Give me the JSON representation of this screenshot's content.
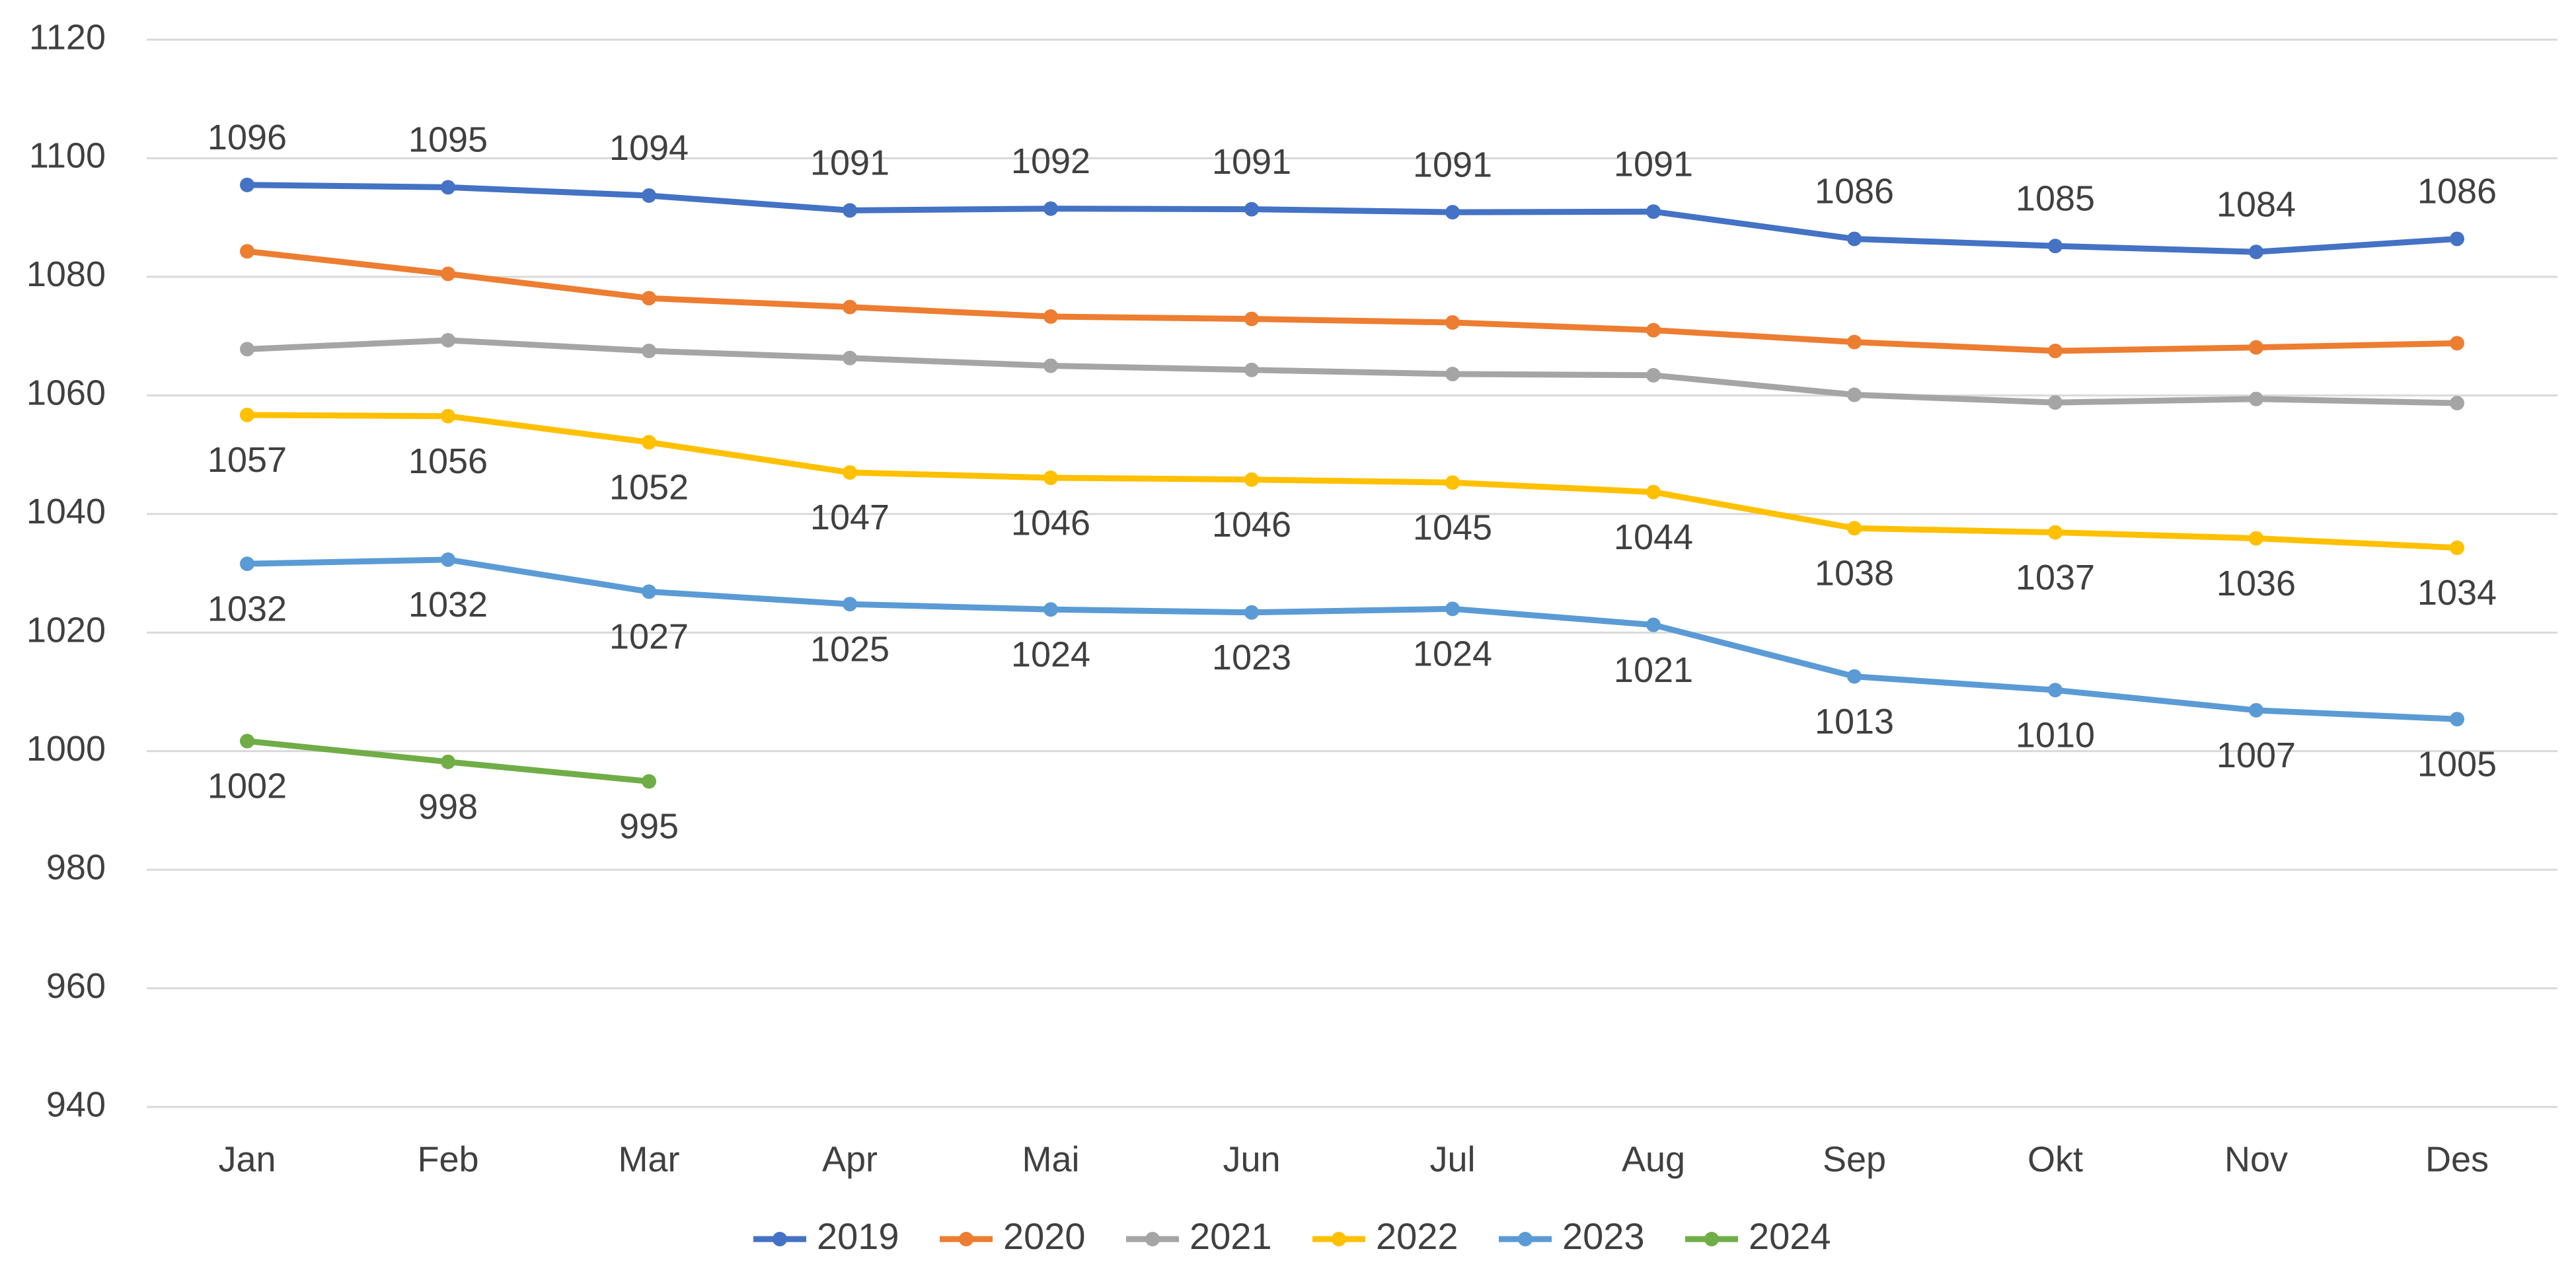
{
  "chart_data": {
    "type": "line",
    "title": "",
    "xlabel": "",
    "ylabel": "",
    "ylim": [
      940,
      1120
    ],
    "yticks": [
      940,
      960,
      980,
      1000,
      1020,
      1040,
      1060,
      1080,
      1100,
      1120
    ],
    "categories": [
      "Jan",
      "Feb",
      "Mar",
      "Apr",
      "Mai",
      "Jun",
      "Jul",
      "Aug",
      "Sep",
      "Okt",
      "Nov",
      "Des"
    ],
    "legend_position": "bottom",
    "grid": true,
    "series": [
      {
        "name": "2019",
        "color": "#4472C4",
        "values": [
          1095.5,
          1095.1,
          1093.7,
          1091.2,
          1091.5,
          1091.4,
          1090.9,
          1091.0,
          1086.4,
          1085.2,
          1084.2,
          1086.4
        ],
        "labels": [
          "1096",
          "1095",
          "1094",
          "1091",
          "1092",
          "1091",
          "1091",
          "1091",
          "1086",
          "1085",
          "1084",
          "1086"
        ],
        "label_position": "above"
      },
      {
        "name": "2020",
        "color": "#ED7D31",
        "values": [
          1084.3,
          1080.5,
          1076.4,
          1074.9,
          1073.3,
          1072.9,
          1072.3,
          1071.0,
          1069.0,
          1067.5,
          1068.1,
          1068.8
        ],
        "labels": null,
        "label_position": "none"
      },
      {
        "name": "2021",
        "color": "#A5A5A5",
        "values": [
          1067.8,
          1069.3,
          1067.5,
          1066.3,
          1065.0,
          1064.3,
          1063.6,
          1063.4,
          1060.1,
          1058.8,
          1059.4,
          1058.7
        ],
        "labels": null,
        "label_position": "none"
      },
      {
        "name": "2022",
        "color": "#FFC000",
        "values": [
          1056.7,
          1056.5,
          1052.1,
          1047.0,
          1046.1,
          1045.8,
          1045.3,
          1043.7,
          1037.6,
          1036.9,
          1035.9,
          1034.3
        ],
        "labels": [
          "1057",
          "1056",
          "1052",
          "1047",
          "1046",
          "1046",
          "1045",
          "1044",
          "1038",
          "1037",
          "1036",
          "1034"
        ],
        "label_position": "below"
      },
      {
        "name": "2023",
        "color": "#5B9BD5",
        "values": [
          1031.6,
          1032.3,
          1026.9,
          1024.8,
          1023.9,
          1023.4,
          1024.0,
          1021.3,
          1012.6,
          1010.3,
          1006.9,
          1005.4
        ],
        "labels": [
          "1032",
          "1032",
          "1027",
          "1025",
          "1024",
          "1023",
          "1024",
          "1021",
          "1013",
          "1010",
          "1007",
          "1005"
        ],
        "label_position": "below"
      },
      {
        "name": "2024",
        "color": "#70AD47",
        "values": [
          1001.7,
          998.2,
          994.9,
          null,
          null,
          null,
          null,
          null,
          null,
          null,
          null,
          null
        ],
        "labels": [
          "1002",
          "998",
          "995",
          null,
          null,
          null,
          null,
          null,
          null,
          null,
          null,
          null
        ],
        "label_position": "below"
      }
    ]
  }
}
